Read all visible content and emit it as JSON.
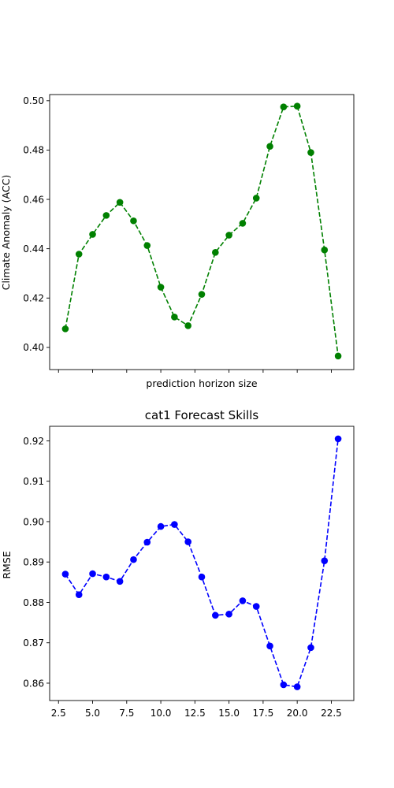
{
  "chart_data": [
    {
      "type": "line",
      "title": "",
      "xlabel": "prediction horizon size",
      "ylabel": "Climate Anomaly (ACC)",
      "xlim": [
        1.85,
        24.15
      ],
      "ylim": [
        0.391,
        0.5025
      ],
      "yticks": [
        0.4,
        0.42,
        0.44,
        0.46,
        0.48,
        0.5
      ],
      "ytick_labels": [
        "0.40",
        "0.42",
        "0.44",
        "0.46",
        "0.48",
        "0.50"
      ],
      "xticks": [
        2.5,
        5.0,
        7.5,
        10.0,
        12.5,
        15.0,
        17.5,
        20.0,
        22.5
      ],
      "xtick_labels_visible": false,
      "grid": false,
      "series": [
        {
          "color": "#008000",
          "linestyle": "dashed",
          "marker": "circle",
          "x": [
            3,
            4,
            5,
            6,
            7,
            8,
            9,
            10,
            11,
            12,
            13,
            14,
            15,
            16,
            17,
            18,
            19,
            20,
            21,
            22,
            23
          ],
          "values": [
            0.4075,
            0.4378,
            0.4458,
            0.4535,
            0.4588,
            0.4513,
            0.4413,
            0.4244,
            0.4123,
            0.4088,
            0.4215,
            0.4385,
            0.4455,
            0.4503,
            0.4605,
            0.4815,
            0.4975,
            0.4978,
            0.479,
            0.4395,
            0.3965
          ]
        }
      ]
    },
    {
      "type": "line",
      "title": "cat1 Forecast Skills",
      "xlabel": "",
      "ylabel": "RMSE",
      "xlim": [
        1.85,
        24.15
      ],
      "ylim": [
        0.8557,
        0.9236
      ],
      "yticks": [
        0.86,
        0.87,
        0.88,
        0.89,
        0.9,
        0.91,
        0.92
      ],
      "ytick_labels": [
        "0.86",
        "0.87",
        "0.88",
        "0.89",
        "0.90",
        "0.91",
        "0.92"
      ],
      "xticks": [
        2.5,
        5.0,
        7.5,
        10.0,
        12.5,
        15.0,
        17.5,
        20.0,
        22.5
      ],
      "xtick_labels": [
        "2.5",
        "5.0",
        "7.5",
        "10.0",
        "12.5",
        "15.0",
        "17.5",
        "20.0",
        "22.5"
      ],
      "grid": false,
      "series": [
        {
          "color": "#0000ff",
          "linestyle": "dashed",
          "marker": "circle",
          "x": [
            3,
            4,
            5,
            6,
            7,
            8,
            9,
            10,
            11,
            12,
            13,
            14,
            15,
            16,
            17,
            18,
            19,
            20,
            21,
            22,
            23
          ],
          "values": [
            0.887,
            0.8819,
            0.8871,
            0.8863,
            0.8852,
            0.8906,
            0.8949,
            0.8988,
            0.8993,
            0.895,
            0.8863,
            0.8768,
            0.8771,
            0.8804,
            0.879,
            0.8692,
            0.8596,
            0.8591,
            0.8688,
            0.8903,
            0.9205
          ]
        }
      ]
    }
  ]
}
